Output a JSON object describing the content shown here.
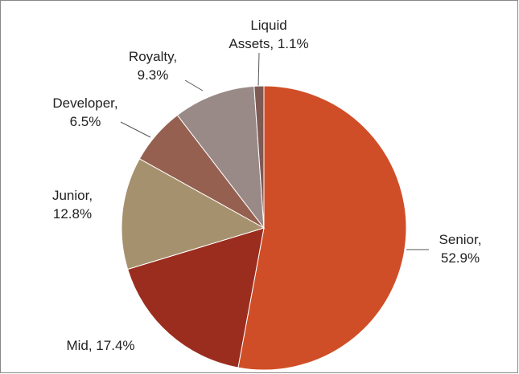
{
  "chart_data": {
    "type": "pie",
    "values": [
      52.9,
      17.4,
      12.8,
      6.5,
      9.3,
      1.1
    ],
    "value_labels": [
      [
        "Senior,",
        "52.9%"
      ],
      [
        "Mid, 17.4%"
      ],
      [
        "Junior,",
        "12.8%"
      ],
      [
        "Developer,",
        "6.5%"
      ],
      [
        "Royalty,",
        "9.3%"
      ],
      [
        "Liquid",
        "Assets, 1.1%"
      ]
    ],
    "colors": [
      "#d04e27",
      "#9b2d1f",
      "#a5916d",
      "#95604f",
      "#998a88",
      "#7e5a55"
    ]
  }
}
